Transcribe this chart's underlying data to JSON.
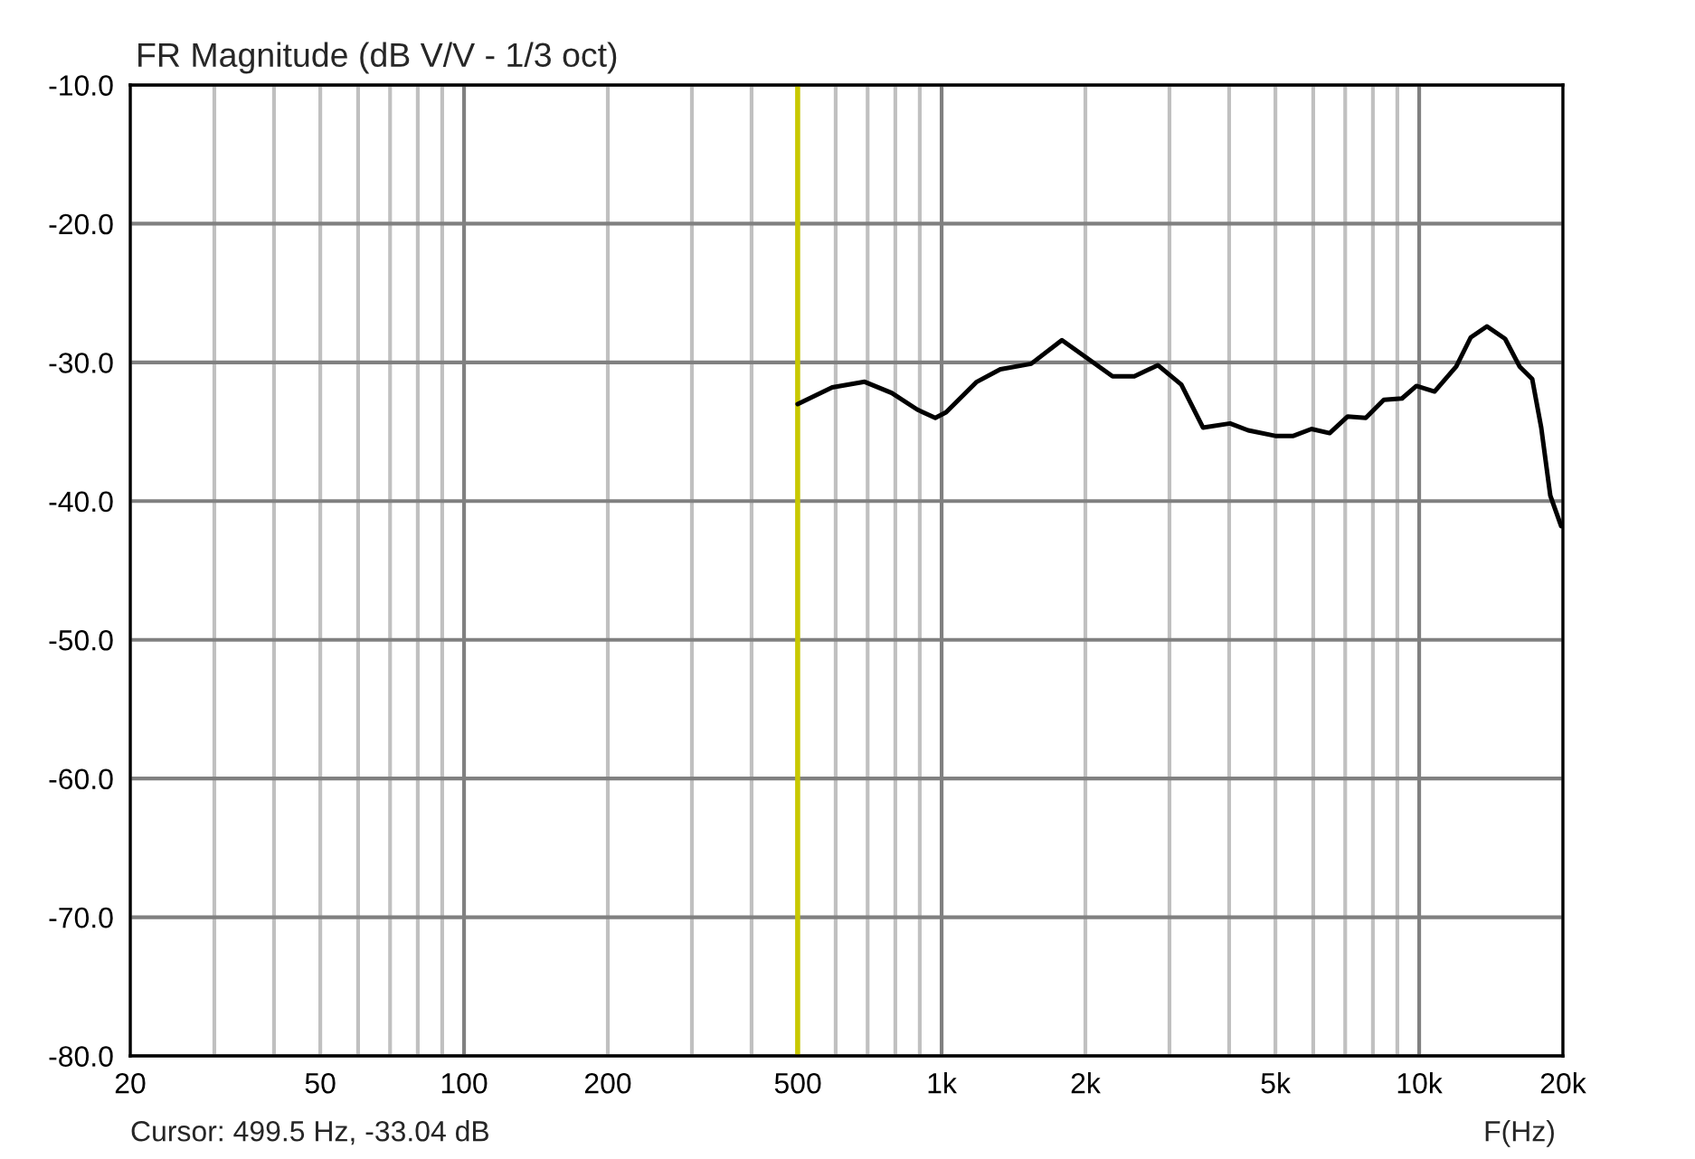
{
  "chart_data": {
    "type": "line",
    "title": "FR Magnitude (dB V/V - 1/3 oct)",
    "xlabel": "F(Hz)",
    "annotations": [
      "Cursor: 499.5 Hz, -33.04 dB"
    ],
    "log": "x",
    "grid": true,
    "legend": false,
    "marker": "none",
    "line_style": "solid",
    "x": [
      499.5,
      590,
      690,
      786,
      889,
      970,
      1022,
      1185,
      1327,
      1540,
      1786,
      2000,
      2280,
      2532,
      2836,
      3176,
      3526,
      4018,
      4384,
      4996,
      5452,
      5950,
      6494,
      7084,
      7730,
      8434,
      9204,
      9868,
      10768,
      11956,
      12820,
      13864,
      15132,
      16228,
      17246,
      18012,
      18816,
      19826
    ],
    "series": [
      {
        "color": "#000000",
        "values": [
          -33.0,
          -31.8,
          -31.4,
          -32.2,
          -33.4,
          -34.0,
          -33.6,
          -31.4,
          -30.5,
          -30.1,
          -28.4,
          -29.6,
          -31.0,
          -31.0,
          -30.2,
          -31.6,
          -34.7,
          -34.4,
          -34.9,
          -35.3,
          -35.3,
          -34.8,
          -35.1,
          -33.9,
          -34.0,
          -32.7,
          -32.6,
          -31.7,
          -32.1,
          -30.3,
          -28.2,
          -27.4,
          -28.3,
          -30.3,
          -31.2,
          -34.7,
          -39.6,
          -41.8
        ]
      }
    ],
    "ref_lines": [
      {
        "axis": "x",
        "value": 499.5,
        "color": "#c8c800",
        "line_style": "solid"
      }
    ],
    "xlim": [
      20,
      20000
    ],
    "ylim": [
      -80,
      -10
    ],
    "xticks": [
      20,
      {
        "value": 30,
        "label": null
      },
      {
        "value": 40,
        "label": null
      },
      50,
      {
        "value": 60,
        "label": null
      },
      {
        "value": 70,
        "label": null
      },
      {
        "value": 80,
        "label": null
      },
      {
        "value": 90,
        "label": null
      },
      100,
      200,
      {
        "value": 300,
        "label": null
      },
      {
        "value": 400,
        "label": null
      },
      500,
      {
        "value": 600,
        "label": null
      },
      {
        "value": 700,
        "label": null
      },
      {
        "value": 800,
        "label": null
      },
      {
        "value": 900,
        "label": null
      },
      {
        "value": 1000,
        "label": "1k"
      },
      {
        "value": 2000,
        "label": "2k"
      },
      {
        "value": 3000,
        "label": null
      },
      {
        "value": 4000,
        "label": null
      },
      {
        "value": 5000,
        "label": "5k"
      },
      {
        "value": 6000,
        "label": null
      },
      {
        "value": 7000,
        "label": null
      },
      {
        "value": 8000,
        "label": null
      },
      {
        "value": 9000,
        "label": null
      },
      {
        "value": 10000,
        "label": "10k"
      },
      {
        "value": 20000,
        "label": "20k"
      }
    ],
    "yticks": [
      {
        "value": -80,
        "label": "-80.0"
      },
      {
        "value": -70,
        "label": "-70.0"
      },
      {
        "value": -60,
        "label": "-60.0"
      },
      {
        "value": -50,
        "label": "-50.0"
      },
      {
        "value": -40,
        "label": "-40.0"
      },
      {
        "value": -30,
        "label": "-30.0"
      },
      {
        "value": -20,
        "label": "-20.0"
      },
      {
        "value": -10,
        "label": "-10.0"
      }
    ]
  }
}
